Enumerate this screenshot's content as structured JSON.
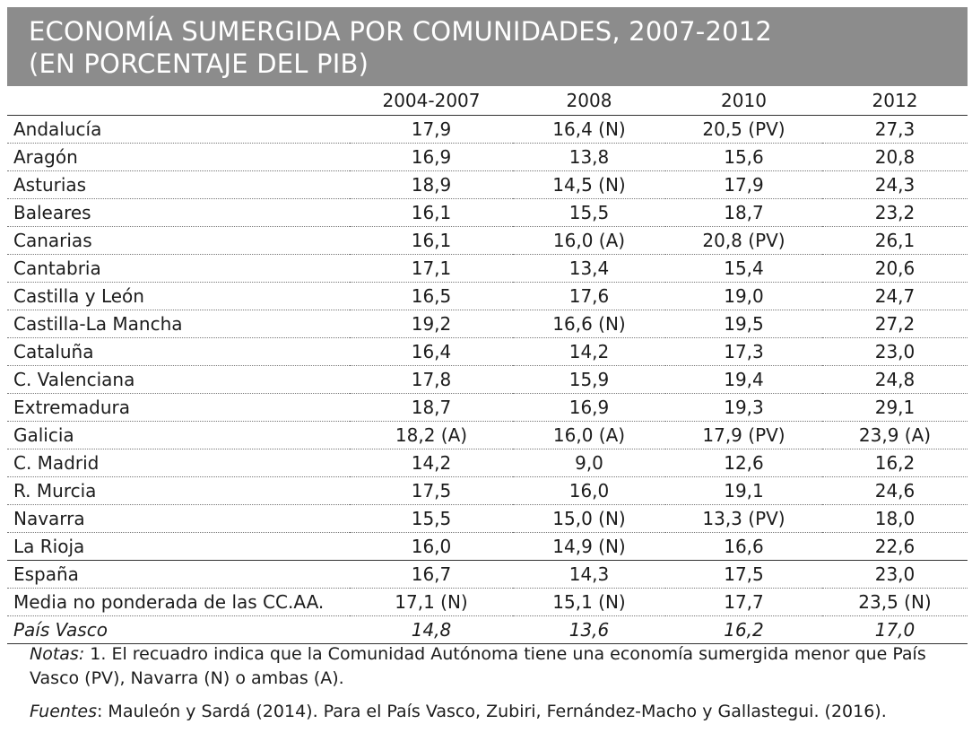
{
  "header": {
    "title_line1": "ECONOMÍA SUMERGIDA POR COMUNIDADES, 2007-2012",
    "title_line2": "(EN PORCENTAJE DEL PIB)"
  },
  "table": {
    "columns": [
      "",
      "2004-2007",
      "2008",
      "2010",
      "2012"
    ],
    "rows": [
      [
        "Andalucía",
        "17,9",
        "16,4 (N)",
        "20,5 (PV)",
        "27,3"
      ],
      [
        "Aragón",
        "16,9",
        "13,8",
        "15,6",
        "20,8"
      ],
      [
        "Asturias",
        "18,9",
        "14,5 (N)",
        "17,9",
        "24,3"
      ],
      [
        "Baleares",
        "16,1",
        "15,5",
        "18,7",
        "23,2"
      ],
      [
        "Canarias",
        "16,1",
        "16,0 (A)",
        "20,8 (PV)",
        "26,1"
      ],
      [
        "Cantabria",
        "17,1",
        "13,4",
        "15,4",
        "20,6"
      ],
      [
        "Castilla y León",
        "16,5",
        "17,6",
        "19,0",
        "24,7"
      ],
      [
        "Castilla-La Mancha",
        "19,2",
        "16,6 (N)",
        "19,5",
        "27,2"
      ],
      [
        "Cataluña",
        "16,4",
        "14,2",
        "17,3",
        "23,0"
      ],
      [
        "C. Valenciana",
        "17,8",
        "15,9",
        "19,4",
        "24,8"
      ],
      [
        "Extremadura",
        "18,7",
        "16,9",
        "19,3",
        "29,1"
      ],
      [
        "Galicia",
        "18,2 (A)",
        "16,0 (A)",
        "17,9 (PV)",
        "23,9 (A)"
      ],
      [
        "C. Madrid",
        "14,2",
        "9,0",
        "12,6",
        "16,2"
      ],
      [
        "R. Murcia",
        "17,5",
        "16,0",
        "19,1",
        "24,6"
      ],
      [
        "Navarra",
        "15,5",
        "15,0 (N)",
        "13,3 (PV)",
        "18,0"
      ],
      [
        "La Rioja",
        "16,0",
        "14,9 (N)",
        "16,6",
        "22,6"
      ]
    ],
    "spain": [
      "España",
      "16,7",
      "14,3",
      "17,5",
      "23,0"
    ],
    "media": [
      "Media no ponderada de las CC.AA.",
      "17,1 (N)",
      "15,1 (N)",
      "17,7",
      "23,5 (N)"
    ],
    "vasco": [
      "País Vasco",
      "14,8",
      "13,6",
      "16,2",
      "17,0"
    ]
  },
  "notes": {
    "notas_label": "Notas:",
    "notas_text": " 1. El recuadro indica que la Comunidad Autónoma tiene una economía sumergida menor que País Vasco (PV), Navarra (N) o ambas (A).",
    "fuentes_label": "Fuentes",
    "fuentes_text": ": Mauleón y Sardá (2014). Para el País Vasco, Zubiri, Fernández-Macho y Gallastegui. (2016)."
  }
}
